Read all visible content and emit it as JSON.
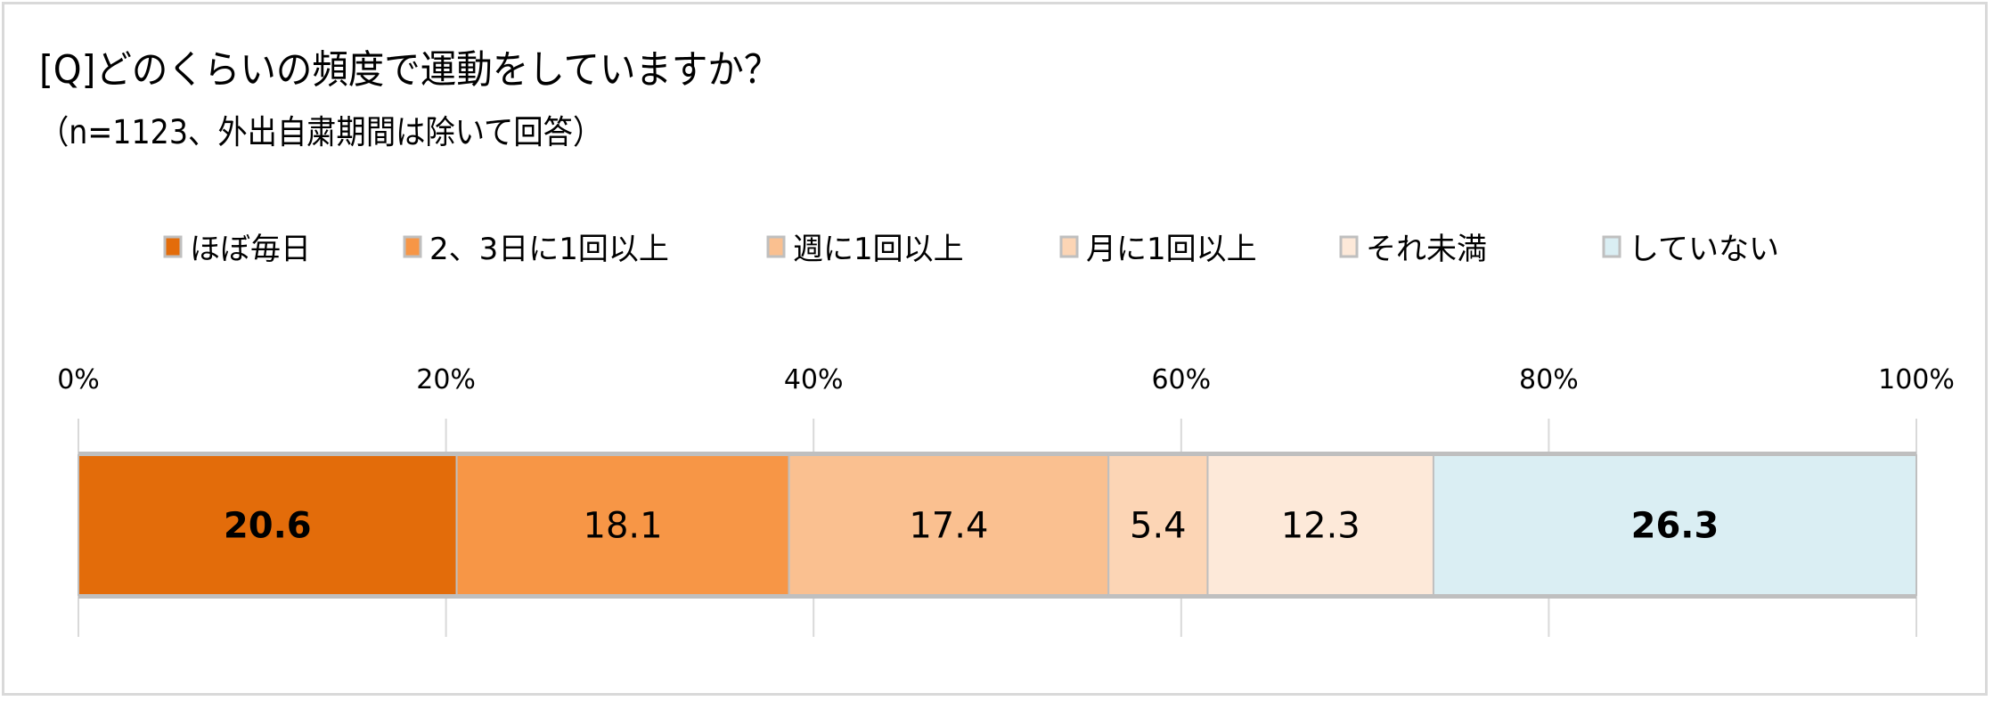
{
  "chart_data": {
    "type": "bar",
    "orientation": "horizontal-stacked",
    "title": "[Q]どのくらいの頻度で運動をしていますか？",
    "subtitle": "（n=1123、外出自粛期間は除いて回答）",
    "series": [
      {
        "name": "ほぼ毎日",
        "value": 20.6,
        "color": "#E36C0A",
        "bold": true
      },
      {
        "name": "2、3日に1回以上",
        "value": 18.1,
        "color": "#F79646",
        "bold": false
      },
      {
        "name": "週に1回以上",
        "value": 17.4,
        "color": "#FAC090",
        "bold": false
      },
      {
        "name": "月に1回以上",
        "value": 5.4,
        "color": "#FCD5B5",
        "bold": false
      },
      {
        "name": "それ未満",
        "value": 12.3,
        "color": "#FDE9D9",
        "bold": false
      },
      {
        "name": "していない",
        "value": 26.3,
        "color": "#DAEEF3",
        "bold": true
      }
    ],
    "xticks": [
      "0%",
      "20%",
      "40%",
      "60%",
      "80%",
      "100%"
    ],
    "xlim": [
      0,
      100
    ],
    "grid": true,
    "legend": "top",
    "axis_position": "top"
  }
}
